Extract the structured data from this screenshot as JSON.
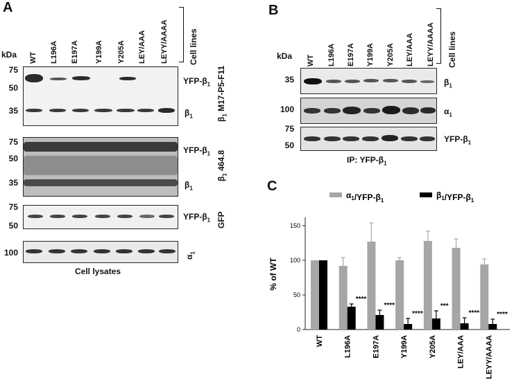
{
  "panel_a": {
    "letter": "A",
    "kda": "kDa",
    "lanes": [
      "WT",
      "L196A",
      "E197A",
      "Y199A",
      "Y205A",
      "LEY/AAA",
      "LEYY/AAAA"
    ],
    "cell_lines": "Cell lines",
    "blot1": {
      "mw": [
        "75",
        "50",
        "35"
      ],
      "label_top": "YFP-β1",
      "label_bottom": "β1",
      "antibody": "β1 M17-P5-F11"
    },
    "blot2": {
      "mw": [
        "75",
        "50",
        "35"
      ],
      "label_top": "YFP-β1",
      "label_bottom": "β1",
      "antibody": "β1 464.8"
    },
    "blot3": {
      "mw": [
        "75",
        "50"
      ],
      "label": "YFP-β1",
      "antibody": "GFP"
    },
    "blot4": {
      "mw": [
        "100"
      ],
      "antibody": "α1"
    },
    "caption": "Cell lysates"
  },
  "panel_b": {
    "letter": "B",
    "kda": "kDa",
    "lanes": [
      "WT",
      "L196A",
      "E197A",
      "Y199A",
      "Y205A",
      "LEY/AAA",
      "LEYY/AAAA"
    ],
    "cell_lines": "Cell lines",
    "blot1": {
      "mw": [
        "35"
      ],
      "label": "β1"
    },
    "blot2": {
      "mw": [
        "100"
      ],
      "label": "α1"
    },
    "blot3": {
      "mw": [
        "75",
        "50"
      ],
      "label": "YFP-β1"
    },
    "caption": "IP: YFP-β1"
  },
  "panel_c": {
    "letter": "C",
    "chart_data": {
      "type": "bar",
      "categories": [
        "WT",
        "L196A",
        "E197A",
        "Y199A",
        "Y205A",
        "LEY/AAA",
        "LEYY/AAAA"
      ],
      "series": [
        {
          "name": "α1/YFP-β1",
          "color": "#a6a6a6",
          "values": [
            100,
            92,
            127,
            100,
            128,
            118,
            94
          ],
          "errors": [
            0,
            12,
            27,
            4,
            14,
            13,
            8
          ]
        },
        {
          "name": "β1/YFP-β1",
          "color": "#000000",
          "values": [
            100,
            33,
            21,
            8,
            16,
            9,
            8
          ],
          "errors": [
            0,
            4,
            7,
            8,
            11,
            8,
            7
          ]
        }
      ],
      "significance": [
        "",
        "****",
        "****",
        "****",
        "***",
        "****",
        "****"
      ],
      "ylabel": "% of WT",
      "yticks": [
        "0",
        "50",
        "100",
        "150"
      ],
      "ylim": [
        0,
        160
      ],
      "legend_position": "top"
    }
  }
}
